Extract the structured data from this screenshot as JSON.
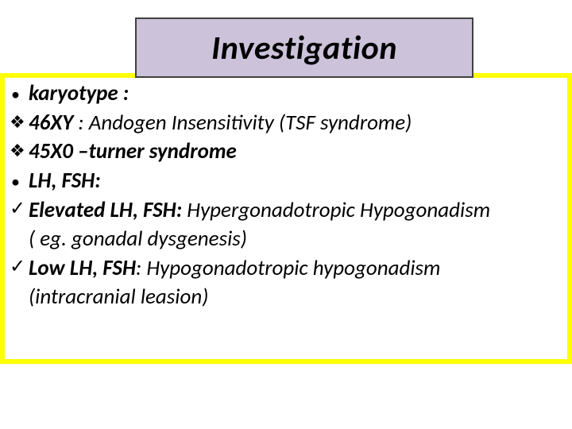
{
  "colors": {
    "title_bg": "#ccc2da",
    "title_border": "#404040",
    "frame_border": "#ffff00",
    "text": "#000000",
    "background": "#ffffff"
  },
  "title": "Investigation",
  "bullets": {
    "dot": "•",
    "diamond": "❖",
    "check": "✓"
  },
  "lines": {
    "l1_bold": "karyotype :",
    "l2_bold": "46XY",
    "l2_rest": " : Andogen Insensitivity (TSF syndrome)",
    "l3_bold": "45X0 –turner syndrome",
    "l4_bold": "LH, FSH:",
    "l5_bold": "Elevated LH, FSH: ",
    "l5_rest": "Hypergonadotropic Hypogonadism",
    "l5_cont": "( eg. gonadal dysgenesis)",
    "l6_bold": "Low LH, FSH",
    "l6_rest": ": Hypogonadotropic hypogonadism",
    "l6_cont": "(intracranial leasion)"
  },
  "typography": {
    "title_fontsize": 42,
    "body_fontsize": 27,
    "font_family": "Calibri",
    "italic": true
  }
}
